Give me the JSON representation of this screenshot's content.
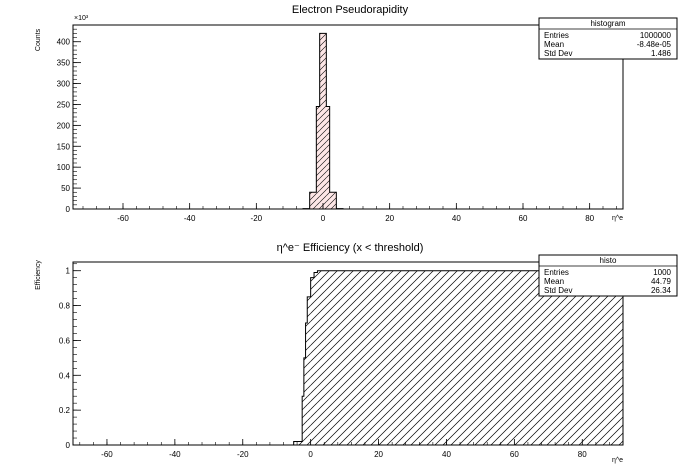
{
  "chart_data": [
    {
      "type": "bar",
      "title": "Electron Pseudorapidity",
      "xlabel": "η^e",
      "ylabel": "Counts",
      "ymultiplier_label": "×10³",
      "xlim": [
        -75,
        90
      ],
      "ylim": [
        0,
        440
      ],
      "xticks": [
        -60,
        -40,
        -20,
        0,
        20,
        40,
        60,
        80
      ],
      "yticks": [
        0,
        50,
        100,
        150,
        200,
        250,
        300,
        350,
        400
      ],
      "grid": false,
      "fill": "#fde6e6",
      "hatch": "diagonal-up",
      "bins": [
        {
          "x0": -6,
          "x1": -4,
          "y": 1
        },
        {
          "x0": -4,
          "x1": -2,
          "y": 40
        },
        {
          "x0": -2,
          "x1": -1,
          "y": 245
        },
        {
          "x0": -1,
          "x1": 1,
          "y": 420
        },
        {
          "x0": 1,
          "x1": 2,
          "y": 245
        },
        {
          "x0": 2,
          "x1": 4,
          "y": 40
        },
        {
          "x0": 4,
          "x1": 6,
          "y": 1
        }
      ],
      "stats": {
        "name": "histogram",
        "rows": [
          {
            "label": "Entries",
            "value": "1000000"
          },
          {
            "label": "Mean",
            "value": "-8.48e-05"
          },
          {
            "label": "Std Dev",
            "value": "1.486"
          }
        ]
      }
    },
    {
      "type": "bar",
      "title": "η^e⁻ Efficiency (x < threshold)",
      "xlabel": "η^e",
      "ylabel": "Efficiency",
      "xlim": [
        -70,
        92
      ],
      "ylim": [
        0,
        1.05
      ],
      "xticks": [
        -60,
        -40,
        -20,
        0,
        20,
        40,
        60,
        80
      ],
      "yticks": [
        0,
        0.2,
        0.4,
        0.6,
        0.8,
        1
      ],
      "grid": false,
      "fill": "#ffffff",
      "hatch": "diagonal-up",
      "bins": [
        {
          "x0": -5,
          "x1": -2.5,
          "y": 0.02
        },
        {
          "x0": -2.5,
          "x1": -2,
          "y": 0.28
        },
        {
          "x0": -2,
          "x1": -1.5,
          "y": 0.5
        },
        {
          "x0": -1.5,
          "x1": -1,
          "y": 0.7
        },
        {
          "x0": -1,
          "x1": 0,
          "y": 0.85
        },
        {
          "x0": 0,
          "x1": 1,
          "y": 0.96
        },
        {
          "x0": 1,
          "x1": 2,
          "y": 0.99
        },
        {
          "x0": 2,
          "x1": 92,
          "y": 1.0
        }
      ],
      "stats": {
        "name": "histo",
        "rows": [
          {
            "label": "Entries",
            "value": "1000"
          },
          {
            "label": "Mean",
            "value": "44.79"
          },
          {
            "label": "Std Dev",
            "value": "26.34"
          }
        ]
      }
    }
  ]
}
